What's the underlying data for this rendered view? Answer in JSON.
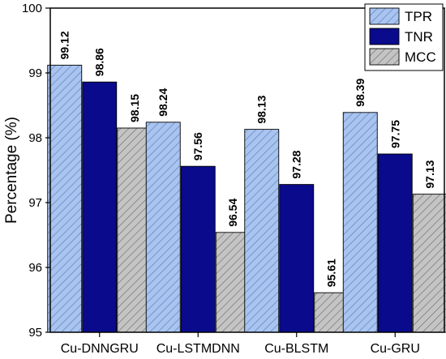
{
  "chart_data": {
    "type": "bar",
    "title": "",
    "xlabel": "",
    "ylabel": "Percentage (%)",
    "ylim": [
      95,
      100
    ],
    "yticks": [
      "95",
      "96",
      "97",
      "98",
      "99",
      "100"
    ],
    "categories": [
      "Cu-DNNGRU",
      "Cu-LSTMDNN",
      "Cu-BLSTM",
      "Cu-GRU"
    ],
    "series": [
      {
        "name": "TPR",
        "values": [
          99.12,
          98.24,
          98.13,
          98.39
        ],
        "labels": [
          "99.12",
          "98.24",
          "98.13",
          "98.39"
        ],
        "color": "#a9c4ee",
        "pattern": "hatch"
      },
      {
        "name": "TNR",
        "values": [
          98.86,
          97.56,
          97.28,
          97.75
        ],
        "labels": [
          "98.86",
          "97.56",
          "97.28",
          "97.75"
        ],
        "color": "#0a0a8c",
        "pattern": "solid"
      },
      {
        "name": "MCC",
        "values": [
          98.15,
          96.54,
          95.61,
          97.13
        ],
        "labels": [
          "98.15",
          "96.54",
          "95.61",
          "97.13"
        ],
        "color": "#bdbdbd",
        "pattern": "hatch"
      }
    ],
    "legend_position": "top-right",
    "grid": false
  }
}
